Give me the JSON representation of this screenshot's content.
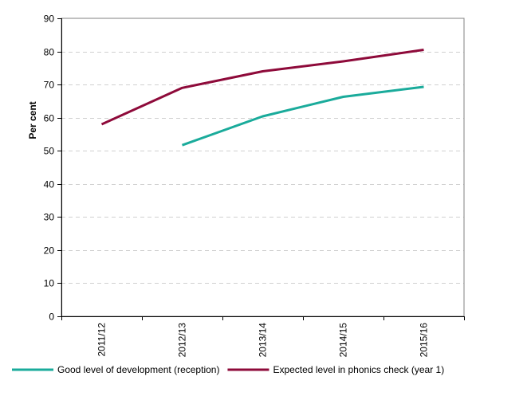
{
  "chart_data": {
    "type": "line",
    "title": "",
    "xlabel": "",
    "ylabel": "Per cent",
    "categories": [
      "2011/12",
      "2012/13",
      "2013/14",
      "2014/15",
      "2015/16"
    ],
    "ylim": [
      0,
      90
    ],
    "yticks": [
      0,
      10,
      20,
      30,
      40,
      50,
      60,
      70,
      80,
      90
    ],
    "grid": true,
    "legend_position": "bottom",
    "series": [
      {
        "name": "Good level of development (reception)",
        "color": "#1aab9b",
        "values": [
          null,
          51.7,
          60.4,
          66.3,
          69.3
        ]
      },
      {
        "name": "Expected level in phonics check (year 1)",
        "color": "#8e0a3a",
        "values": [
          58,
          69,
          74,
          77,
          80.5
        ]
      }
    ]
  }
}
